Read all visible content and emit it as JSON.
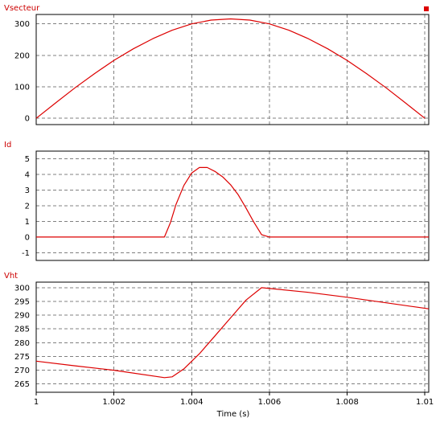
{
  "colors": {
    "trace": "#dd0000",
    "grid": "#808080",
    "frame": "#000000",
    "background": "#ffffff"
  },
  "chart_data": {
    "type": "line",
    "xlabel": "Time (s)",
    "x_ticks": [
      "1",
      "1.002",
      "1.004",
      "1.006",
      "1.008",
      "1.01"
    ],
    "x_tick_values": [
      1.0,
      1.002,
      1.004,
      1.006,
      1.008,
      1.01
    ],
    "xlim": [
      1.0,
      1.0101
    ],
    "grid": true,
    "legend_marker": "top-right",
    "panels": [
      {
        "title": "Vsecteur",
        "ylim": [
          -20,
          330
        ],
        "y_ticks": [
          "0",
          "100",
          "200",
          "300"
        ],
        "y_tick_values": [
          0,
          100,
          200,
          300
        ],
        "series": [
          {
            "x": [
              1.0,
              1.0005,
              1.001,
              1.0015,
              1.002,
              1.0025,
              1.003,
              1.0035,
              1.004,
              1.0045,
              1.005,
              1.0055,
              1.006,
              1.0065,
              1.007,
              1.0075,
              1.008,
              1.0085,
              1.009,
              1.0095,
              1.01
            ],
            "y": [
              0,
              49,
              97,
              142,
              184,
              221,
              253,
              280,
              300,
              312,
              316,
              312,
              300,
              280,
              253,
              221,
              184,
              142,
              97,
              49,
              0
            ]
          }
        ]
      },
      {
        "title": "Id",
        "ylim": [
          -1.5,
          5.5
        ],
        "y_ticks": [
          "-1",
          "0",
          "1",
          "2",
          "3",
          "4",
          "5"
        ],
        "y_tick_values": [
          -1,
          0,
          1,
          2,
          3,
          4,
          5
        ],
        "series": [
          {
            "x": [
              1.0,
              1.0033,
              1.00345,
              1.0036,
              1.0038,
              1.004,
              1.0042,
              1.0044,
              1.0046,
              1.0048,
              1.005,
              1.0052,
              1.0054,
              1.0056,
              1.0058,
              1.006,
              1.0101
            ],
            "y": [
              0,
              0,
              0.9,
              2.1,
              3.3,
              4.1,
              4.45,
              4.45,
              4.2,
              3.85,
              3.35,
              2.7,
              1.85,
              0.95,
              0.15,
              0,
              0
            ]
          }
        ]
      },
      {
        "title": "Vht",
        "ylim": [
          262,
          302
        ],
        "y_ticks": [
          "265",
          "270",
          "275",
          "280",
          "285",
          "290",
          "295",
          "300"
        ],
        "y_tick_values": [
          265,
          270,
          275,
          280,
          285,
          290,
          295,
          300
        ],
        "series": [
          {
            "x": [
              1.0,
              1.001,
              1.002,
              1.0033,
              1.0035,
              1.0038,
              1.0042,
              1.0046,
              1.005,
              1.0054,
              1.0058,
              1.007,
              1.008,
              1.009,
              1.0101
            ],
            "y": [
              273.3,
              271.6,
              270.0,
              267.3,
              267.6,
              270.5,
              276.0,
              282.5,
              289.0,
              295.5,
              300.0,
              298.3,
              296.5,
              294.5,
              292.3
            ]
          }
        ]
      }
    ]
  }
}
